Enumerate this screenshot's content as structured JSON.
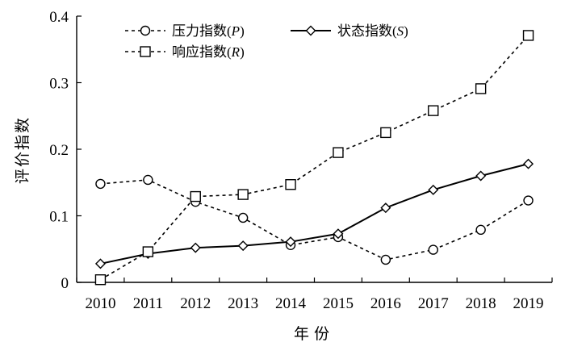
{
  "chart_data": {
    "type": "line",
    "categories": [
      "2010",
      "2011",
      "2012",
      "2013",
      "2014",
      "2015",
      "2016",
      "2017",
      "2018",
      "2019"
    ],
    "xlabel": "年 份",
    "ylabel": "评价指数",
    "ylim": [
      0,
      0.4
    ],
    "yticks": [
      0,
      0.1,
      0.2,
      0.3,
      0.4
    ],
    "ytick_labels": [
      "0",
      "0.1",
      "0.2",
      "0.3",
      "0.4"
    ],
    "grid": false,
    "legend_position": "top",
    "series": [
      {
        "name": "压力指数(P)",
        "label_text": "压力指数",
        "symbol": "P",
        "marker": "circle",
        "line_style": "dashed",
        "color": "#000000",
        "values": [
          0.148,
          0.154,
          0.121,
          0.097,
          0.056,
          0.068,
          0.034,
          0.049,
          0.079,
          0.123
        ]
      },
      {
        "name": "状态指数(S)",
        "label_text": "状态指数",
        "symbol": "S",
        "marker": "diamond",
        "line_style": "solid",
        "color": "#000000",
        "values": [
          0.028,
          0.043,
          0.052,
          0.055,
          0.061,
          0.073,
          0.112,
          0.139,
          0.16,
          0.178
        ]
      },
      {
        "name": "响应指数(R)",
        "label_text": "响应指数",
        "symbol": "R",
        "marker": "square",
        "line_style": "dashed",
        "color": "#000000",
        "values": [
          0.004,
          0.046,
          0.129,
          0.132,
          0.147,
          0.195,
          0.225,
          0.258,
          0.291,
          0.371
        ]
      }
    ]
  }
}
